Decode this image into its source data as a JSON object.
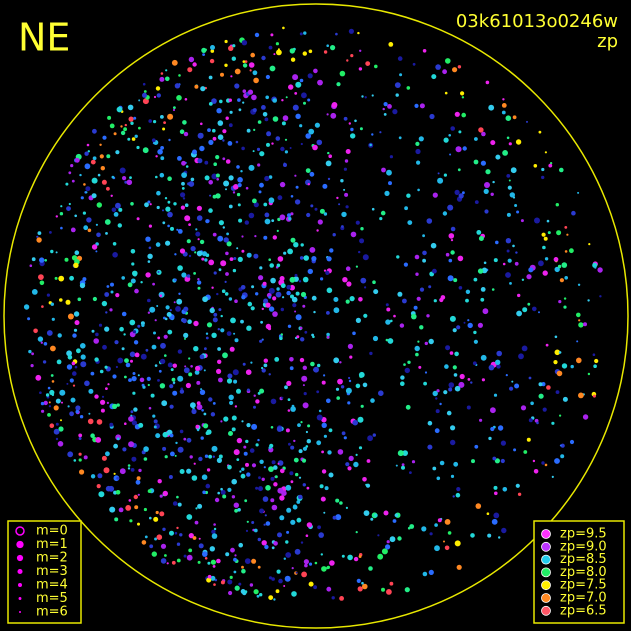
{
  "header": {
    "direction": "NE",
    "image_id": "03k61013o0246w",
    "mode": "zp"
  },
  "magnitude_legend": [
    "m=0",
    "m=1",
    "m=2",
    "m=3",
    "m=4",
    "m=5",
    "m=6"
  ],
  "magnitude_color": "#ff00ff",
  "zeropoint_legend": [
    {
      "label": "zp=9.5",
      "color": "#ff33ff"
    },
    {
      "label": "zp=9.0",
      "color": "#bb33ff"
    },
    {
      "label": "zp=8.5",
      "color": "#22ccee"
    },
    {
      "label": "zp=8.0",
      "color": "#22ee66"
    },
    {
      "label": "zp=7.5",
      "color": "#ffee00"
    },
    {
      "label": "zp=7.0",
      "color": "#ff8822"
    },
    {
      "label": "zp=6.5",
      "color": "#ff5566"
    }
  ]
}
